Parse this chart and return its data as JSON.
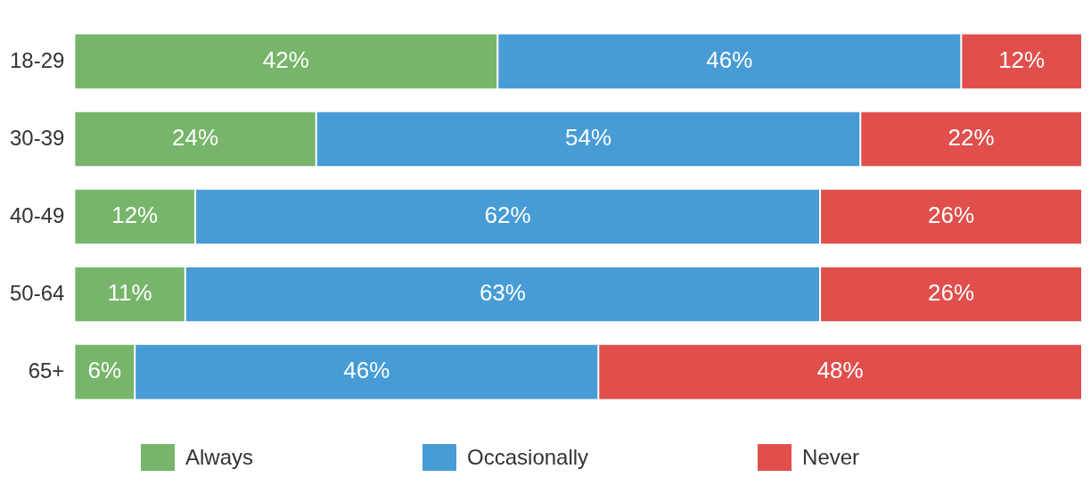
{
  "chart_data": {
    "type": "bar",
    "orientation": "horizontal",
    "stacked": true,
    "categories": [
      "18-29",
      "30-39",
      "40-49",
      "50-64",
      "65+"
    ],
    "series": [
      {
        "name": "Always",
        "color": "#77b56b",
        "values": [
          42,
          24,
          12,
          11,
          6
        ],
        "value_labels": [
          "42%",
          "24%",
          "12%",
          "11%",
          "6%"
        ]
      },
      {
        "name": "Occasionally",
        "color": "#479cd6",
        "values": [
          46,
          54,
          62,
          63,
          46
        ],
        "value_labels": [
          "46%",
          "54%",
          "62%",
          "63%",
          "46%"
        ]
      },
      {
        "name": "Never",
        "color": "#e04f4c",
        "values": [
          12,
          22,
          26,
          26,
          48
        ],
        "value_labels": [
          "12%",
          "22%",
          "26%",
          "26%",
          "48%"
        ]
      }
    ],
    "xlim": [
      0,
      100
    ],
    "legend": "bottom",
    "tick_labels": "y"
  }
}
